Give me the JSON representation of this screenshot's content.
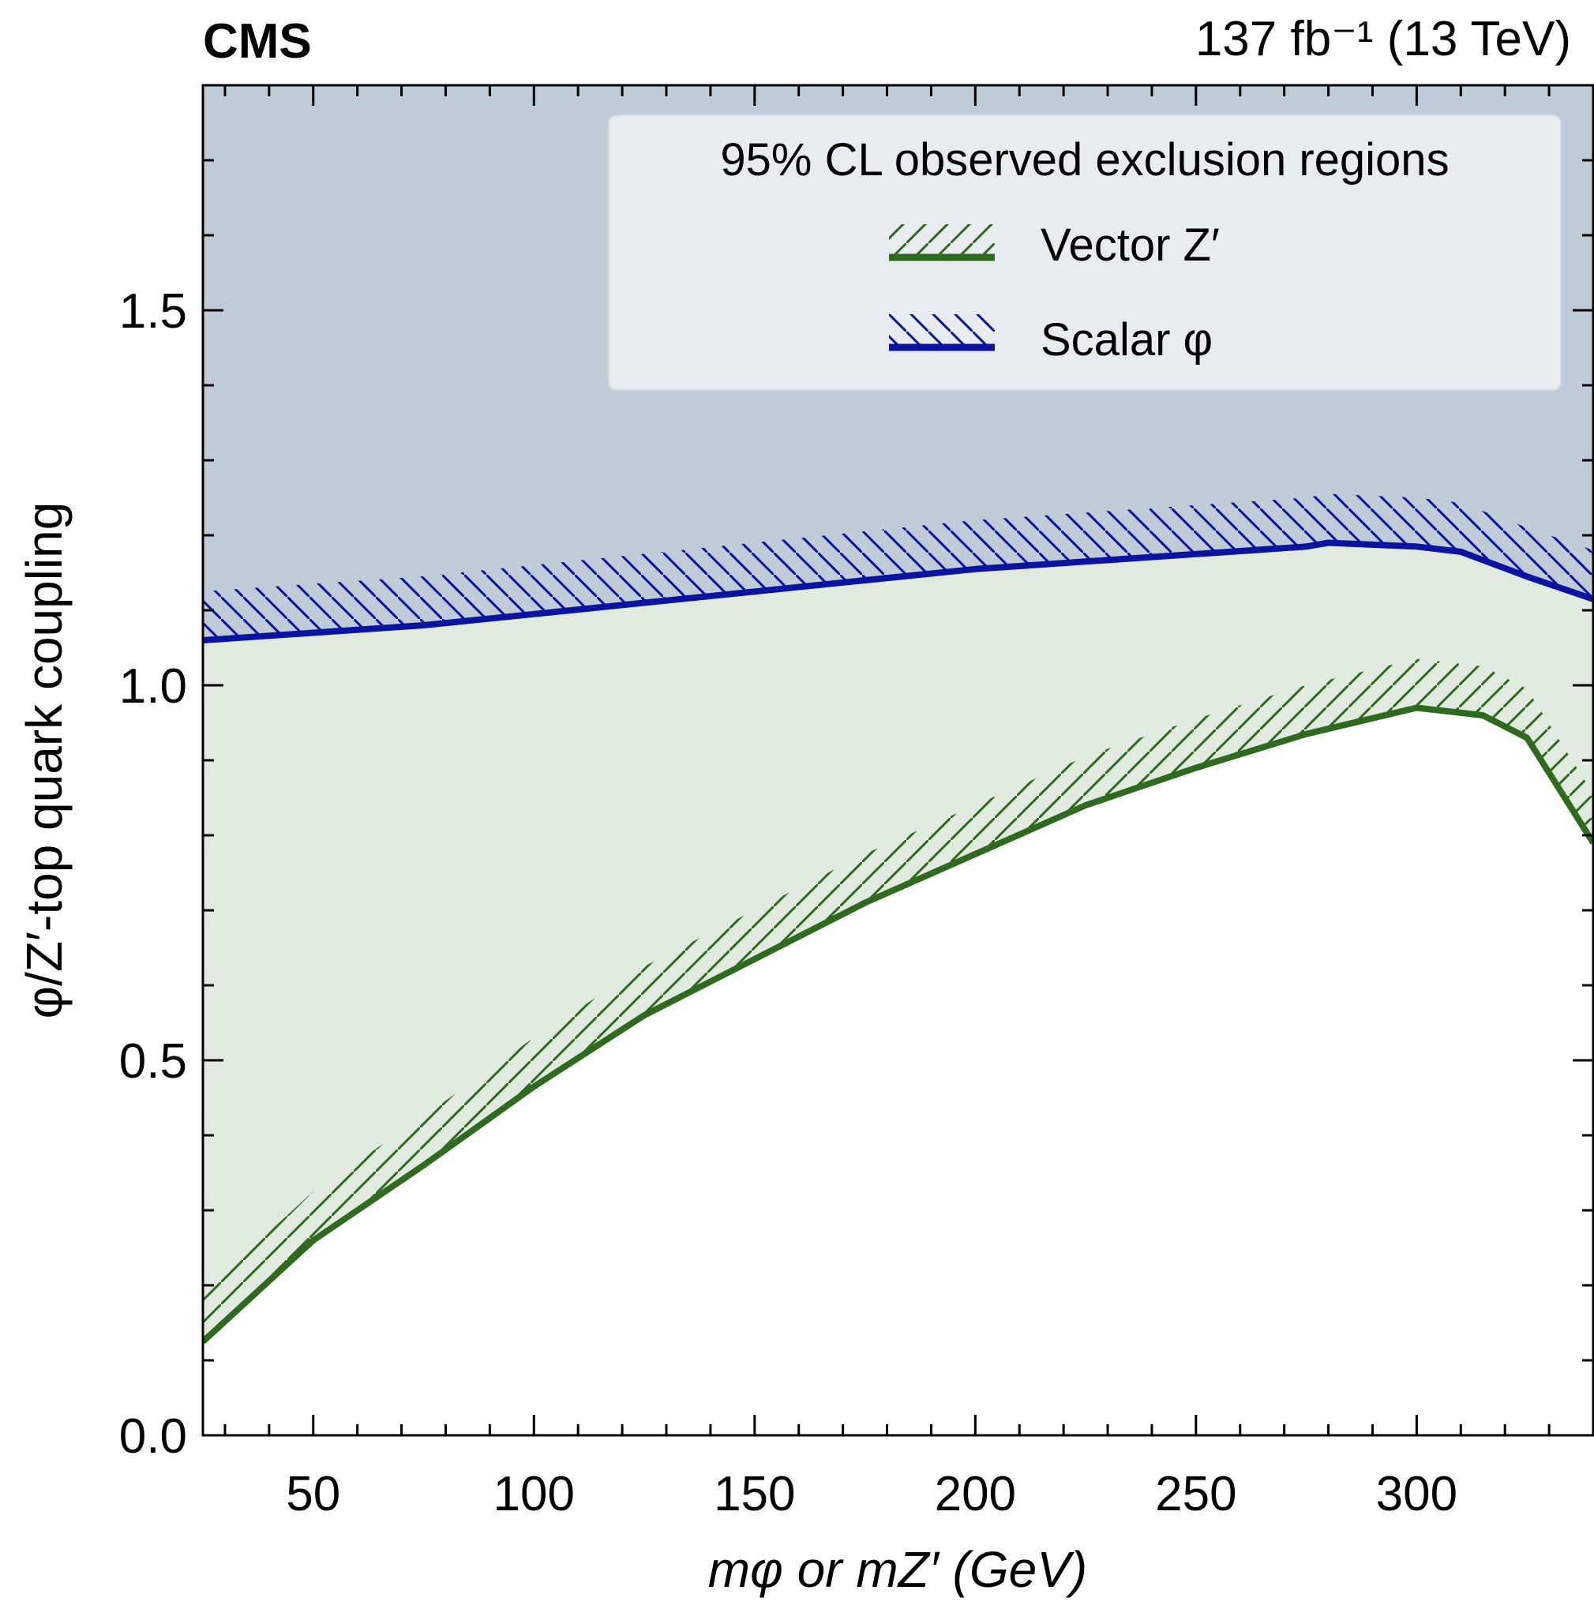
{
  "header": {
    "experiment": "CMS",
    "lumi_energy": "137 fb⁻¹ (13 TeV)"
  },
  "chart_data": {
    "type": "area",
    "xlabel": "mφ or mZ′ (GeV)",
    "ylabel": "φ/Z′-top quark coupling",
    "xlim": [
      25,
      340
    ],
    "ylim": [
      0.0,
      1.8
    ],
    "x_ticks": [
      50,
      100,
      150,
      200,
      250,
      300
    ],
    "x_tick_labels": [
      "50",
      "100",
      "150",
      "200",
      "250",
      "300"
    ],
    "y_ticks": [
      0.0,
      0.5,
      1.0,
      1.5
    ],
    "y_tick_labels": [
      "0.0",
      "0.5",
      "1.0",
      "1.5"
    ],
    "legend": {
      "title": "95% CL observed exclusion regions",
      "placement": "top-right",
      "entries": [
        "Vector Z′",
        "Scalar φ"
      ]
    },
    "grid": false,
    "series": [
      {
        "name": "Scalar φ",
        "color": "#0a14a0",
        "hatch": "backslash",
        "x": [
          25,
          50,
          75,
          100,
          125,
          150,
          175,
          200,
          225,
          250,
          275,
          280,
          300,
          310,
          325,
          340
        ],
        "y": [
          1.06,
          1.07,
          1.08,
          1.095,
          1.11,
          1.125,
          1.14,
          1.155,
          1.165,
          1.175,
          1.185,
          1.19,
          1.185,
          1.178,
          1.145,
          1.115
        ]
      },
      {
        "name": "Vector Z′",
        "color": "#2e6b1e",
        "hatch": "slash",
        "x": [
          25,
          50,
          60,
          75,
          100,
          125,
          150,
          175,
          200,
          225,
          250,
          275,
          300,
          315,
          325,
          340
        ],
        "y": [
          0.125,
          0.26,
          0.3,
          0.36,
          0.465,
          0.56,
          0.635,
          0.71,
          0.775,
          0.84,
          0.89,
          0.935,
          0.97,
          0.96,
          0.93,
          0.79
        ]
      }
    ],
    "colors": {
      "scalar_excluded_fill": "#bfcbd6",
      "vector_excluded_fill": "#e1eadf",
      "legend_fill": "#e8ebef",
      "axis": "#000000"
    }
  }
}
